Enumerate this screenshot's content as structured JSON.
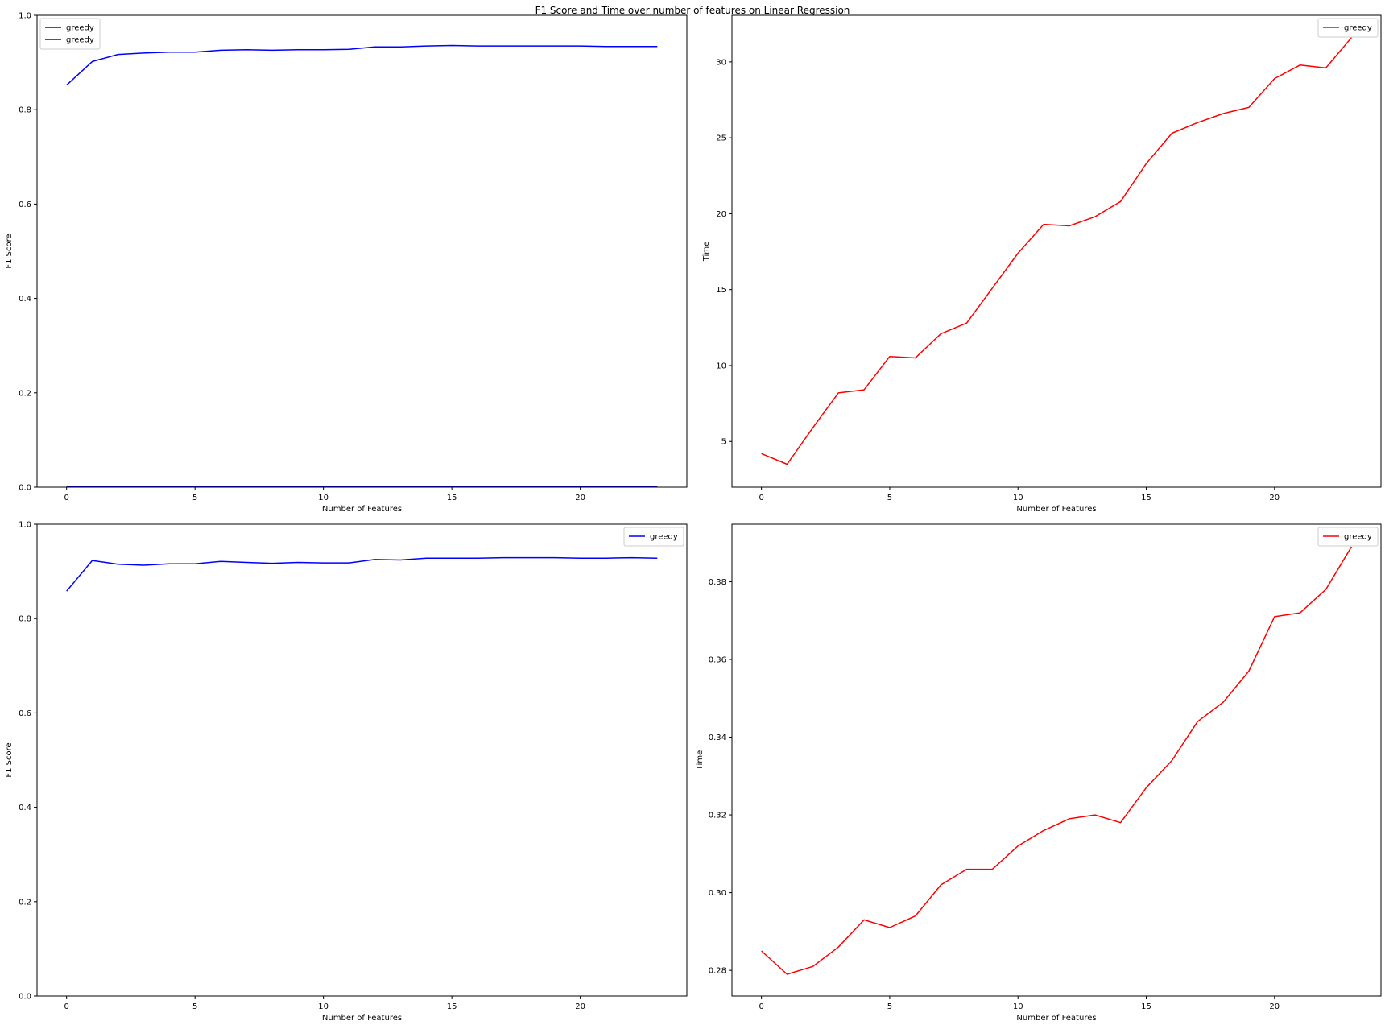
{
  "title": "F1 Score and Time over number of features on Linear Regression",
  "chart_data": [
    {
      "type": "line",
      "xlabel": "Number of Features",
      "ylabel": "F1 Score",
      "xlim": [
        -1.15,
        24.15
      ],
      "ylim": [
        0,
        1.0
      ],
      "xticks": [
        0,
        5,
        10,
        15,
        20
      ],
      "yticks": [
        0.0,
        0.2,
        0.4,
        0.6,
        0.8,
        1.0
      ],
      "ytick_labels": [
        "0.0",
        "0.2",
        "0.4",
        "0.6",
        "0.8",
        "1.0"
      ],
      "grid": false,
      "legend_position": "upper left",
      "series": [
        {
          "name": "greedy",
          "color": "#0000ff",
          "x": [
            0,
            1,
            2,
            3,
            4,
            5,
            6,
            7,
            8,
            9,
            10,
            11,
            12,
            13,
            14,
            15,
            16,
            17,
            18,
            19,
            20,
            21,
            22,
            23
          ],
          "values": [
            0.852,
            0.902,
            0.917,
            0.92,
            0.922,
            0.922,
            0.926,
            0.927,
            0.926,
            0.927,
            0.927,
            0.928,
            0.933,
            0.933,
            0.935,
            0.936,
            0.935,
            0.935,
            0.935,
            0.935,
            0.935,
            0.934,
            0.934,
            0.934
          ]
        },
        {
          "name": "greedy",
          "color": "#0000ff",
          "x": [
            0,
            1,
            2,
            3,
            4,
            5,
            6,
            7,
            8,
            9,
            10,
            11,
            12,
            13,
            14,
            15,
            16,
            17,
            18,
            19,
            20,
            21,
            22,
            23
          ],
          "values": [
            0.002,
            0.002,
            0.001,
            0.001,
            0.001,
            0.002,
            0.002,
            0.002,
            0.001,
            0.001,
            0.001,
            0.001,
            0.001,
            0.001,
            0.001,
            0.001,
            0.001,
            0.001,
            0.001,
            0.001,
            0.001,
            0.001,
            0.001,
            0.001
          ]
        }
      ]
    },
    {
      "type": "line",
      "xlabel": "Number of Features",
      "ylabel": "Time",
      "xlim": [
        -1.15,
        24.15
      ],
      "ylim": [
        1.99,
        33.07
      ],
      "xticks": [
        0,
        5,
        10,
        15,
        20
      ],
      "yticks": [
        5,
        10,
        15,
        20,
        25,
        30
      ],
      "ytick_labels": [
        "5",
        "10",
        "15",
        "20",
        "25",
        "30"
      ],
      "grid": false,
      "legend_position": "upper right",
      "series": [
        {
          "name": "greedy",
          "color": "#ff0000",
          "x": [
            0,
            1,
            2,
            3,
            4,
            5,
            6,
            7,
            8,
            9,
            10,
            11,
            12,
            13,
            14,
            15,
            16,
            17,
            18,
            19,
            20,
            21,
            22,
            23
          ],
          "values": [
            4.2,
            3.5,
            5.9,
            8.2,
            8.4,
            10.6,
            10.5,
            12.1,
            12.8,
            15.1,
            17.4,
            19.3,
            19.2,
            19.8,
            20.8,
            23.3,
            25.3,
            26.0,
            26.6,
            27.0,
            28.9,
            29.8,
            29.6,
            31.6
          ]
        }
      ]
    },
    {
      "type": "line",
      "xlabel": "Number of Features",
      "ylabel": "F1 Score",
      "xlim": [
        -1.15,
        24.15
      ],
      "ylim": [
        0,
        1.0
      ],
      "xticks": [
        0,
        5,
        10,
        15,
        20
      ],
      "yticks": [
        0.0,
        0.2,
        0.4,
        0.6,
        0.8,
        1.0
      ],
      "ytick_labels": [
        "0.0",
        "0.2",
        "0.4",
        "0.6",
        "0.8",
        "1.0"
      ],
      "grid": false,
      "legend_position": "upper right",
      "series": [
        {
          "name": "greedy",
          "color": "#0000ff",
          "x": [
            0,
            1,
            2,
            3,
            4,
            5,
            6,
            7,
            8,
            9,
            10,
            11,
            12,
            13,
            14,
            15,
            16,
            17,
            18,
            19,
            20,
            21,
            22,
            23
          ],
          "values": [
            0.858,
            0.923,
            0.915,
            0.913,
            0.916,
            0.916,
            0.921,
            0.919,
            0.917,
            0.919,
            0.918,
            0.918,
            0.925,
            0.924,
            0.928,
            0.928,
            0.928,
            0.929,
            0.929,
            0.929,
            0.928,
            0.928,
            0.929,
            0.928
          ]
        }
      ]
    },
    {
      "type": "line",
      "xlabel": "Number of Features",
      "ylabel": "Time",
      "xlim": [
        -1.15,
        24.15
      ],
      "ylim": [
        0.2734,
        0.3948
      ],
      "xticks": [
        0,
        5,
        10,
        15,
        20
      ],
      "yticks": [
        0.28,
        0.3,
        0.32,
        0.34,
        0.36,
        0.38
      ],
      "ytick_labels": [
        "0.28",
        "0.30",
        "0.32",
        "0.34",
        "0.36",
        "0.38"
      ],
      "grid": false,
      "legend_position": "upper right",
      "series": [
        {
          "name": "greedy",
          "color": "#ff0000",
          "x": [
            0,
            1,
            2,
            3,
            4,
            5,
            6,
            7,
            8,
            9,
            10,
            11,
            12,
            13,
            14,
            15,
            16,
            17,
            18,
            19,
            20,
            21,
            22,
            23
          ],
          "values": [
            0.285,
            0.279,
            0.281,
            0.286,
            0.293,
            0.291,
            0.294,
            0.302,
            0.306,
            0.306,
            0.312,
            0.316,
            0.319,
            0.32,
            0.318,
            0.327,
            0.334,
            0.344,
            0.349,
            0.357,
            0.371,
            0.372,
            0.378,
            0.389
          ]
        }
      ]
    }
  ]
}
